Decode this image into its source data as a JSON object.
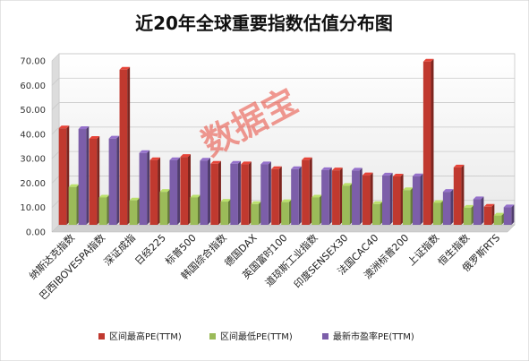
{
  "chart_data": {
    "type": "bar",
    "title": "近20年全球重要指数估值分布图",
    "watermark": "数据宝",
    "ylim": [
      0,
      70
    ],
    "yticks": [
      "0.00",
      "10.00",
      "20.00",
      "30.00",
      "40.00",
      "50.00",
      "60.00",
      "70.00"
    ],
    "grid": true,
    "legend_position": "bottom",
    "categories": [
      "纳斯达克指数",
      "巴西IBOVESPA指数",
      "深证成指",
      "日经225",
      "标普500",
      "韩国综合指数",
      "德国DAX",
      "英国富时100",
      "道琼斯工业指数",
      "印度SENSEX30",
      "法国CAC40",
      "澳洲标普200",
      "上证指数",
      "恒生指数",
      "俄罗斯RTS"
    ],
    "series": [
      {
        "name": "区间最高PE(TTM)",
        "color": "#c0392f",
        "values": [
          39.5,
          35.2,
          63.5,
          26.5,
          27.8,
          25.0,
          24.8,
          22.8,
          26.5,
          22.3,
          20.3,
          19.8,
          66.8,
          23.5,
          7.4
        ]
      },
      {
        "name": "区间最低PE(TTM)",
        "color": "#9bbb59",
        "values": [
          15.5,
          11.2,
          10.0,
          13.5,
          11.2,
          9.5,
          8.5,
          9.3,
          11.2,
          16.0,
          8.5,
          14.2,
          9.0,
          7.0,
          3.8
        ]
      },
      {
        "name": "最新市盈率PE(TTM)",
        "color": "#7c5ea9",
        "values": [
          39.2,
          35.3,
          29.4,
          26.5,
          26.3,
          25.0,
          24.8,
          22.8,
          22.4,
          22.2,
          20.2,
          19.9,
          13.5,
          10.5,
          7.2
        ]
      }
    ]
  }
}
